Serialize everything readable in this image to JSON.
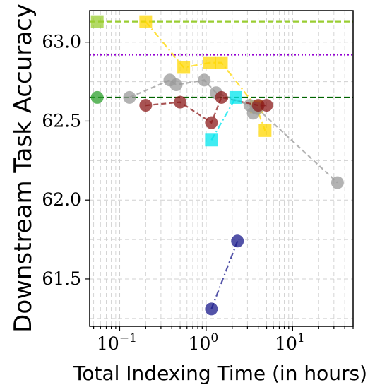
{
  "chart_data": {
    "type": "scatter",
    "xlabel": "Total Indexing Time (in hours)",
    "ylabel": "Downstream Task Accuracy",
    "xscale": "log",
    "xlim": [
      0.045,
      50
    ],
    "ylim": [
      61.2,
      63.2
    ],
    "grid": true,
    "x_ticks": [
      {
        "value": 0.1,
        "base": "10",
        "exp": "−1"
      },
      {
        "value": 1,
        "base": "10",
        "exp": "0"
      },
      {
        "value": 10,
        "base": "10",
        "exp": "1"
      }
    ],
    "y_ticks": [
      {
        "value": 61.5,
        "label": "61.5"
      },
      {
        "value": 62.0,
        "label": "62.0"
      },
      {
        "value": 62.5,
        "label": "62.5"
      },
      {
        "value": 63.0,
        "label": "63.0"
      }
    ],
    "hlines": [
      {
        "y": 63.13,
        "color": "#9acd32",
        "style": "dashed"
      },
      {
        "y": 62.92,
        "color": "#9400d3",
        "style": "dotted"
      },
      {
        "y": 62.65,
        "color": "#006400",
        "style": "dashed"
      }
    ],
    "series": [
      {
        "marker": "square",
        "color": "#9acd32",
        "line": "none",
        "x": [
          0.055
        ],
        "y": [
          63.13
        ]
      },
      {
        "marker": "circle",
        "color": "#2ca02c",
        "line": "none",
        "x": [
          0.055
        ],
        "y": [
          62.65
        ]
      },
      {
        "marker": "square",
        "color": "#ffd700",
        "line": "dashdot",
        "x": [
          0.2,
          0.55,
          1.1,
          1.5,
          3.8,
          4.8
        ],
        "y": [
          63.13,
          62.84,
          62.87,
          62.87,
          62.59,
          62.44
        ]
      },
      {
        "marker": "circle",
        "color": "#999999",
        "line": "dashed",
        "x": [
          0.13,
          0.38,
          0.45,
          0.95,
          1.3,
          3.2,
          3.5,
          3.9,
          33
        ],
        "y": [
          62.65,
          62.76,
          62.73,
          62.76,
          62.68,
          62.6,
          62.55,
          62.58,
          62.11
        ]
      },
      {
        "marker": "circle",
        "color": "#8b1a1a",
        "line": "dashed",
        "x": [
          0.2,
          0.5,
          1.15,
          1.5,
          4.0,
          5.0
        ],
        "y": [
          62.6,
          62.62,
          62.49,
          62.65,
          62.6,
          62.6
        ]
      },
      {
        "marker": "square",
        "color": "#00e5ee",
        "line": "dashdot",
        "x": [
          1.15,
          2.2
        ],
        "y": [
          62.38,
          62.65
        ]
      },
      {
        "marker": "circle",
        "color": "#1a1a8b",
        "line": "dashdot",
        "x": [
          1.15,
          2.3
        ],
        "y": [
          61.31,
          61.74
        ]
      }
    ]
  }
}
